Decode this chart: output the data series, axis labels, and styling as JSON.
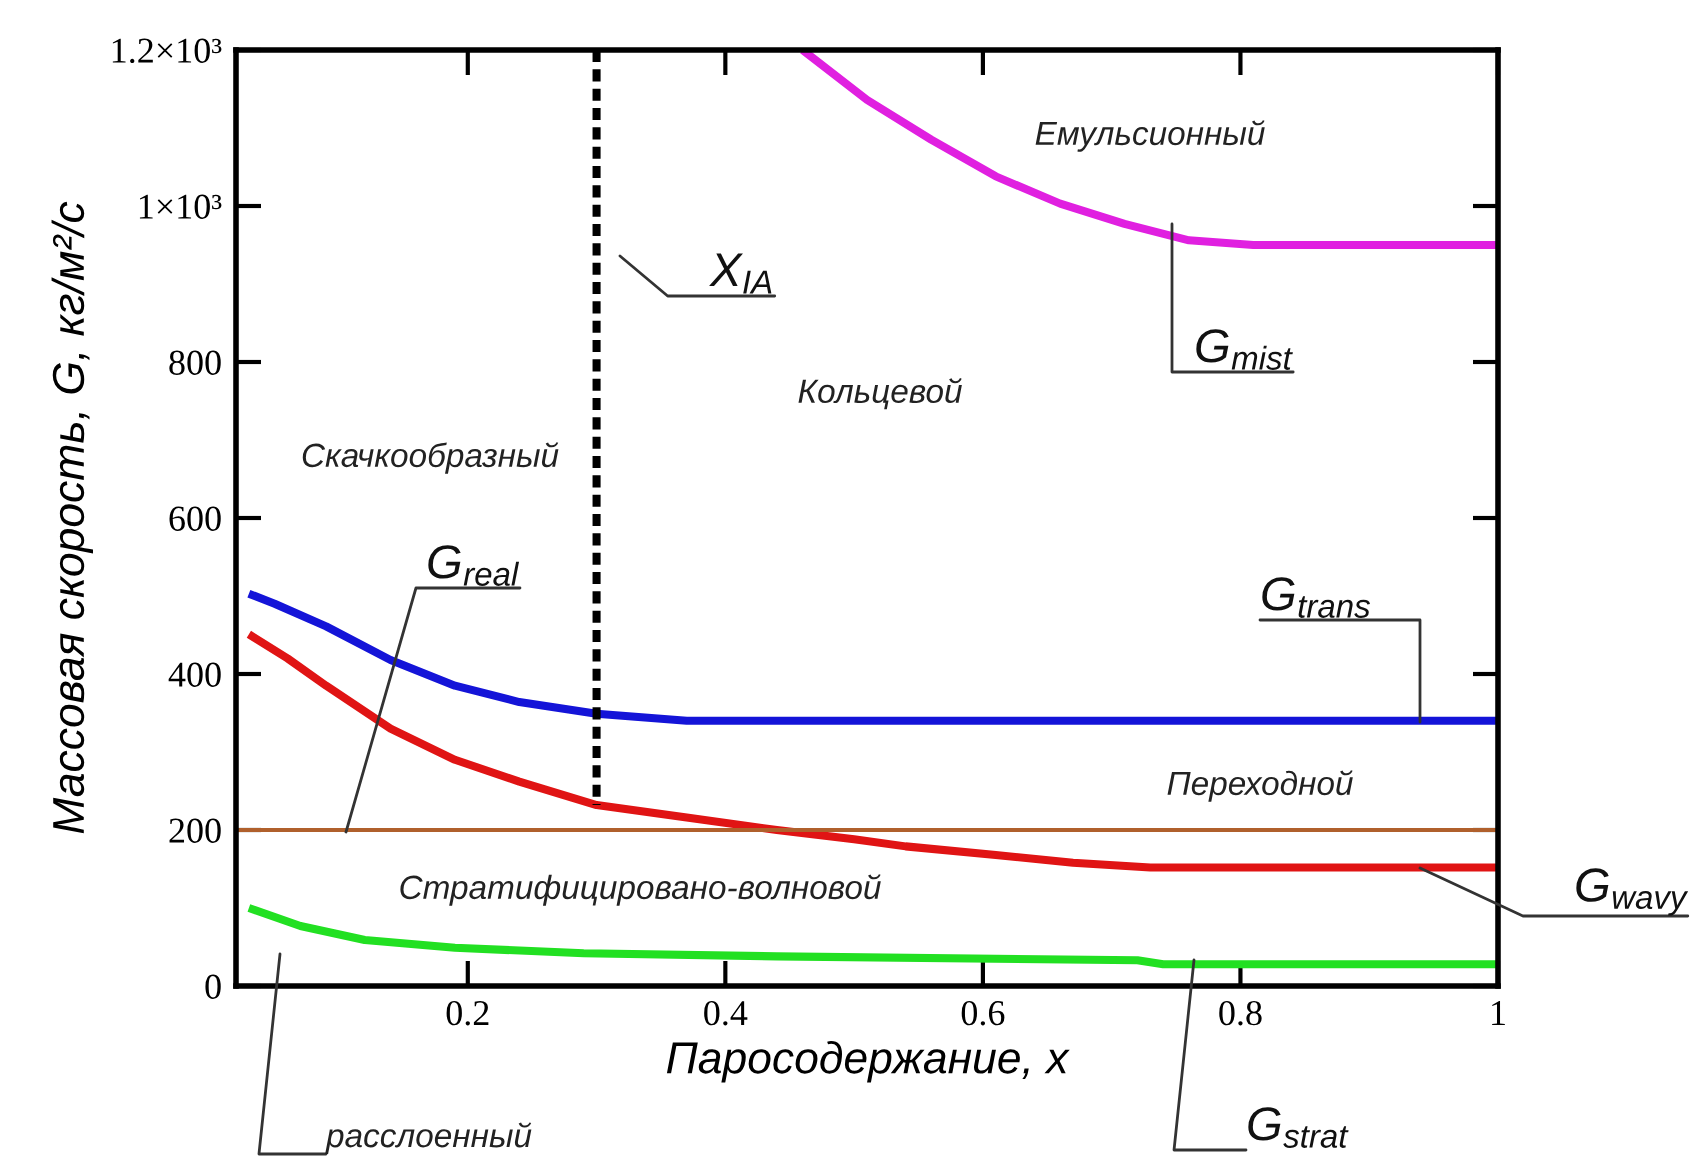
{
  "chart_data": {
    "type": "line",
    "xlabel": "Паросодержание, x",
    "ylabel": "Массовая скорость, G, кг/м²/с",
    "xlim": [
      0.02,
      1
    ],
    "ylim": [
      0,
      1200
    ],
    "xticks": [
      0.2,
      0.4,
      0.6,
      0.8,
      1
    ],
    "yticks": [
      0,
      200,
      400,
      600,
      800,
      {
        "value": 1000,
        "label": "1×10³"
      },
      {
        "value": 1200,
        "label": "1.2×10³"
      }
    ],
    "series": [
      {
        "name": "G$_{mist}$",
        "color": "#e020e0",
        "x": [
          0.46,
          0.51,
          0.56,
          0.61,
          0.66,
          0.71,
          0.76,
          0.81,
          1.0
        ],
        "values": [
          1200,
          1136,
          1085,
          1038,
          1003,
          977,
          956,
          950,
          950
        ]
      },
      {
        "name": "G$_{trans}$",
        "color": "#1414d8",
        "x": [
          0.03,
          0.05,
          0.09,
          0.14,
          0.19,
          0.24,
          0.3,
          0.37,
          1.0
        ],
        "values": [
          503,
          490,
          461,
          418,
          385,
          364,
          349,
          340,
          340
        ]
      },
      {
        "name": "G$_{wavy}$",
        "color": "#e01414",
        "x": [
          0.03,
          0.06,
          0.09,
          0.14,
          0.19,
          0.24,
          0.3,
          0.37,
          0.44,
          0.5,
          0.54,
          0.61,
          0.67,
          0.73,
          1.0
        ],
        "values": [
          451,
          420,
          385,
          330,
          290,
          262,
          232,
          216,
          200,
          188,
          179,
          168,
          158,
          152,
          152
        ]
      },
      {
        "name": "G$_{real}$",
        "color": "#b0602c",
        "x": [
          0.02,
          1.0
        ],
        "values": [
          200,
          200
        ]
      },
      {
        "name": "G$_{strat}$",
        "color": "#22e022",
        "x": [
          0.03,
          0.07,
          0.12,
          0.19,
          0.29,
          0.44,
          0.72,
          0.74,
          1.0
        ],
        "values": [
          100,
          77,
          59,
          49,
          42,
          38,
          33,
          28,
          28
        ]
      },
      {
        "name": "X$_{IA}$",
        "color": "#000000",
        "line_style": "dotted",
        "x": [
          0.3,
          0.3
        ],
        "values": [
          1200,
          232
        ]
      }
    ],
    "annotations": [
      "Емульсионный",
      "Кольцевой",
      "Скачкообразный",
      "Переходной",
      "Стратифицировано-волновой",
      "расслоенный"
    ]
  }
}
